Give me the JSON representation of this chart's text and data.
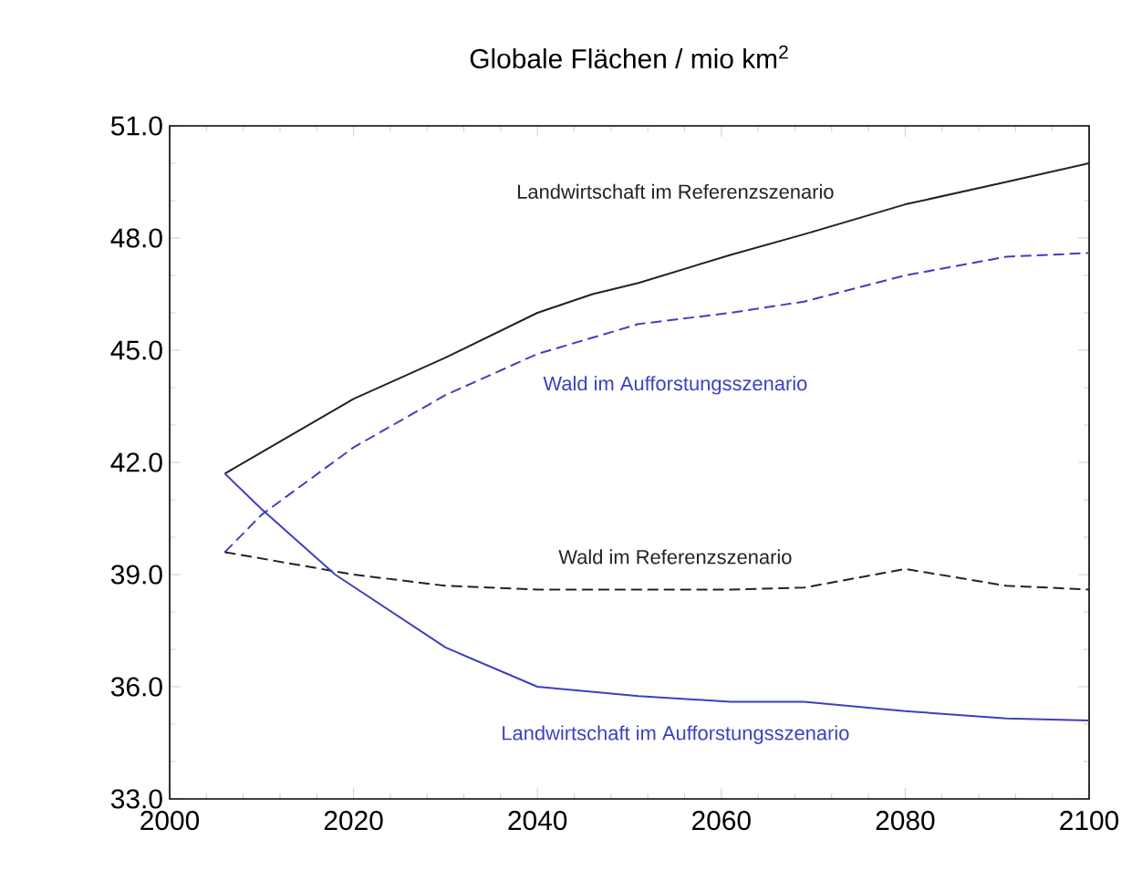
{
  "chart_data": {
    "type": "line",
    "title": "Globale Flächen / mio km$^{2}$",
    "xlim": [
      2000,
      2100
    ],
    "xticks": [
      2000,
      2020,
      2040,
      2060,
      2080,
      2100
    ],
    "ylim": [
      33,
      51
    ],
    "yticks": [
      {
        "value": 33,
        "label": "33.0"
      },
      {
        "value": 36,
        "label": "36.0"
      },
      {
        "value": 39,
        "label": "39.0"
      },
      {
        "value": 42,
        "label": "42.0"
      },
      {
        "value": 45,
        "label": "45.0"
      },
      {
        "value": 48,
        "label": "48.0"
      },
      {
        "value": 51,
        "label": "51.0"
      }
    ],
    "grid": false,
    "series": [
      {
        "name": "Landwirtschaft im Referenzszenario",
        "color": "#222222",
        "line_style": "solid",
        "x": [
          2006,
          2020,
          2030,
          2040,
          2046,
          2051,
          2061,
          2069,
          2080,
          2091,
          2100
        ],
        "values": [
          41.7,
          43.7,
          44.8,
          46.0,
          46.5,
          46.8,
          47.55,
          48.1,
          48.9,
          49.5,
          50.0
        ]
      },
      {
        "name": "Wald im Aufforstungsszenario",
        "color": "#3f3fc0",
        "line_style": "dashed",
        "x": [
          2006,
          2010,
          2020,
          2030,
          2040,
          2051,
          2061,
          2069,
          2080,
          2091,
          2100
        ],
        "values": [
          39.6,
          40.6,
          42.4,
          43.8,
          44.9,
          45.7,
          46.0,
          46.3,
          47.0,
          47.5,
          47.6
        ]
      },
      {
        "name": "Wald im Referenzszenario",
        "color": "#222222",
        "line_style": "dashed",
        "x": [
          2006,
          2020,
          2030,
          2040,
          2051,
          2061,
          2069,
          2080,
          2091,
          2100
        ],
        "values": [
          39.6,
          39.0,
          38.7,
          38.6,
          38.6,
          38.6,
          38.65,
          39.15,
          38.7,
          38.6
        ]
      },
      {
        "name": "Landwirtschaft im Aufforstungsszenario",
        "color": "#3f3fc0",
        "line_style": "solid",
        "x": [
          2006,
          2010,
          2018,
          2030,
          2040,
          2051,
          2061,
          2069,
          2080,
          2091,
          2100
        ],
        "values": [
          41.7,
          40.75,
          39.0,
          37.05,
          36.0,
          35.75,
          35.6,
          35.6,
          35.35,
          35.15,
          35.1
        ]
      }
    ]
  }
}
